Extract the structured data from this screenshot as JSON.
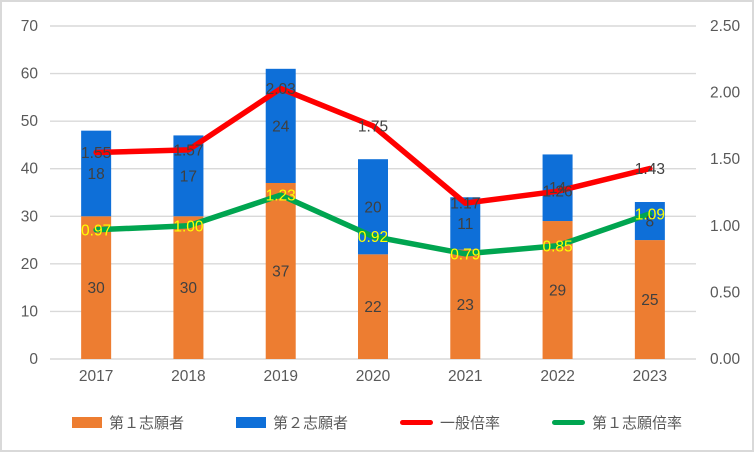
{
  "chart_data": {
    "type": "bar",
    "subtype": "stacked-bar-with-lines-combo",
    "categories": [
      "2017",
      "2018",
      "2019",
      "2020",
      "2021",
      "2022",
      "2023"
    ],
    "series": [
      {
        "name": "第１志願者",
        "chart": "bar",
        "axis": "left",
        "color": "#ED7D31",
        "values": [
          30,
          30,
          37,
          22,
          23,
          29,
          25
        ],
        "labels": [
          "30",
          "30",
          "37",
          "22",
          "23",
          "29",
          "25"
        ],
        "label_color": "#404040"
      },
      {
        "name": "第２志願者",
        "chart": "bar",
        "axis": "left",
        "color": "#0E6FD8",
        "values": [
          18,
          17,
          24,
          20,
          11,
          14,
          8
        ],
        "labels": [
          "18",
          "17",
          "24",
          "20",
          "11",
          "14",
          "8"
        ],
        "label_color": "#404040"
      },
      {
        "name": "一般倍率",
        "chart": "line",
        "axis": "right",
        "color": "#FF0000",
        "values": [
          1.55,
          1.57,
          2.03,
          1.75,
          1.17,
          1.26,
          1.43
        ],
        "labels": [
          "1.55",
          "1.57",
          "2.03",
          "1.75",
          "1.17",
          "1.26",
          "1.43"
        ],
        "label_color": "#404040"
      },
      {
        "name": "第１志願倍率",
        "chart": "line",
        "axis": "right",
        "color": "#00A550",
        "values": [
          0.97,
          1.0,
          1.23,
          0.92,
          0.79,
          0.85,
          1.09
        ],
        "labels": [
          "0.97",
          "1.00",
          "1.23",
          "0.92",
          "0.79",
          "0.85",
          "1.09"
        ],
        "label_color": "#FFFF00"
      }
    ],
    "left_axis": {
      "min": 0,
      "max": 70,
      "tick_values": [
        0,
        10,
        20,
        30,
        40,
        50,
        60,
        70
      ],
      "tick_labels": [
        "0",
        "10",
        "20",
        "30",
        "40",
        "50",
        "60",
        "70"
      ]
    },
    "right_axis": {
      "min": 0.0,
      "max": 2.5,
      "tick_values": [
        0.0,
        0.5,
        1.0,
        1.5,
        2.0,
        2.5
      ],
      "tick_labels": [
        "0.00",
        "0.50",
        "1.00",
        "1.50",
        "2.00",
        "2.50"
      ]
    },
    "grid": true,
    "legend_position": "bottom",
    "title": "",
    "xlabel": "",
    "ylabel": "",
    "colors": {
      "grid": "#D9D9D9",
      "axis_text": "#595959",
      "background": "#FFFFFF",
      "frame_border": "#D9D9D9"
    }
  }
}
